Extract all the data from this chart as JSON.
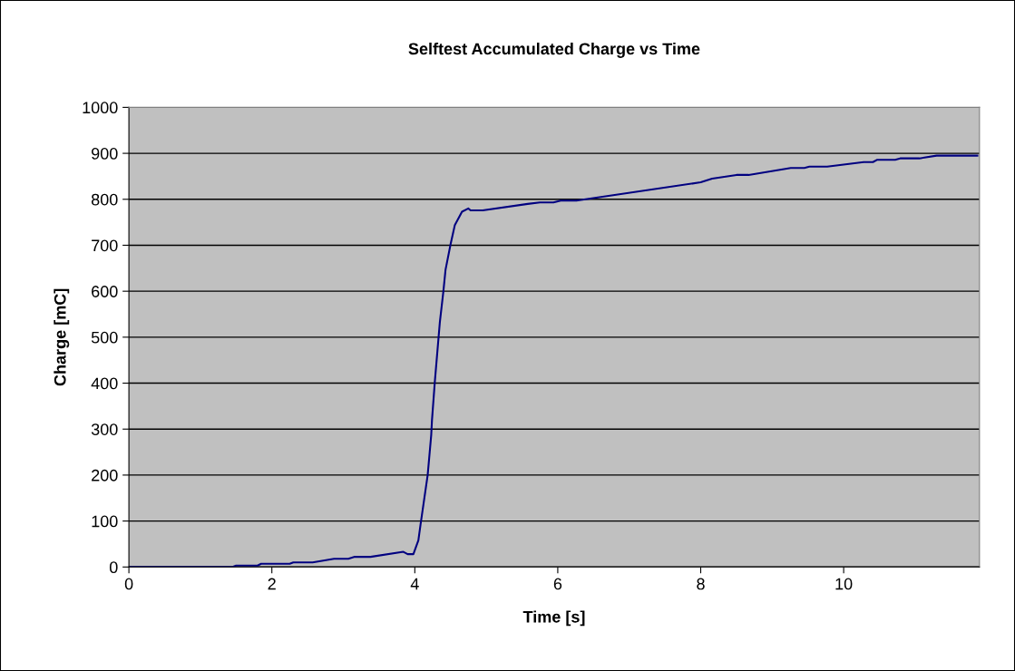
{
  "chart_data": {
    "type": "line",
    "title": "Selftest Accumulated Charge vs Time",
    "xlabel": "Time [s]",
    "ylabel": "Charge [mC]",
    "x": [
      0,
      1.45,
      1.5,
      1.8,
      1.85,
      2.25,
      2.3,
      2.57,
      2.87,
      3.07,
      3.15,
      3.38,
      3.84,
      3.9,
      3.98,
      4.05,
      4.08,
      4.18,
      4.23,
      4.24,
      4.28,
      4.35,
      4.4,
      4.43,
      4.5,
      4.56,
      4.66,
      4.75,
      4.78,
      4.95,
      5.58,
      5.75,
      5.94,
      6.04,
      6.26,
      8.0,
      8.16,
      8.5,
      8.67,
      9.26,
      9.45,
      9.52,
      9.77,
      10.28,
      10.41,
      10.47,
      10.72,
      10.79,
      11.06,
      11.3,
      11.87
    ],
    "series": [
      {
        "color": "#000080",
        "values": [
          0,
          0,
          3,
          3,
          7,
          7,
          10,
          10,
          18,
          18,
          22,
          22,
          33,
          28,
          28,
          58,
          92,
          200,
          288,
          319,
          403,
          532,
          600,
          647,
          702,
          744,
          773,
          780,
          776,
          776,
          790,
          793,
          793,
          797,
          797,
          837,
          845,
          853,
          853,
          868,
          868,
          871,
          871,
          881,
          881,
          886,
          886,
          889,
          889,
          895,
          895
        ]
      }
    ],
    "xlim": [
      0,
      11.9
    ],
    "xticks": [
      0,
      2,
      4,
      6,
      8,
      10
    ],
    "ylim": [
      0,
      1000
    ],
    "yticks": [
      0,
      100,
      200,
      300,
      400,
      500,
      600,
      700,
      800,
      900,
      1000
    ],
    "grid": "y"
  }
}
